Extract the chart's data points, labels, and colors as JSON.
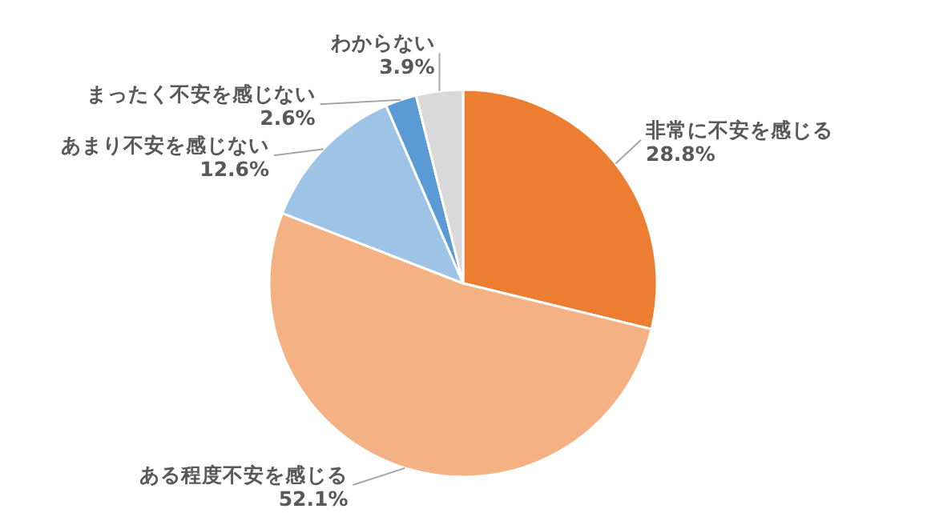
{
  "chart_data": {
    "type": "pie",
    "categories": [
      "非常に不安を感じる",
      "ある程度不安を感じる",
      "あまり不安を感じない",
      "まったく不安を感じない",
      "わからない"
    ],
    "values": [
      28.8,
      52.1,
      12.6,
      2.6,
      3.9
    ],
    "value_labels": [
      "28.8%",
      "52.1%",
      "12.6%",
      "2.6%",
      "3.9%"
    ],
    "colors": [
      "#ed7d31",
      "#f4b183",
      "#9dc3e6",
      "#5b9bd5",
      "#d9d9d9"
    ]
  }
}
